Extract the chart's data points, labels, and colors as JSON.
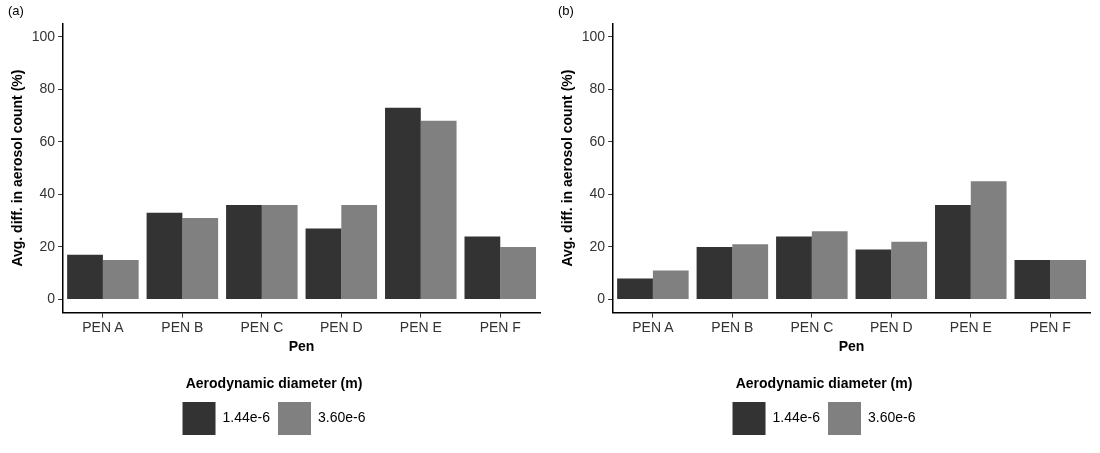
{
  "chart_data": [
    {
      "type": "bar",
      "title": "(a)",
      "xlabel": "Pen",
      "ylabel": "Avg. diff. in aerosol count (%)",
      "legend_title": "Aerodynamic diameter (m)",
      "legend": "bottom",
      "grid": false,
      "categories": [
        "PEN A",
        "PEN B",
        "PEN C",
        "PEN D",
        "PEN E",
        "PEN F"
      ],
      "series": [
        {
          "name": "1.44e-6",
          "color": "#333333",
          "values": [
            17,
            33,
            36,
            27,
            73,
            24
          ]
        },
        {
          "name": "3.60e-6",
          "color": "#808080",
          "values": [
            15,
            31,
            36,
            36,
            68,
            20
          ]
        }
      ],
      "ylim": [
        -5,
        105
      ],
      "yticks": [
        0,
        20,
        40,
        60,
        80,
        100
      ]
    },
    {
      "type": "bar",
      "title": "(b)",
      "xlabel": "Pen",
      "ylabel": "Avg. diff. in aerosol count (%)",
      "legend_title": "Aerodynamic diameter (m)",
      "legend": "bottom",
      "grid": false,
      "categories": [
        "PEN A",
        "PEN B",
        "PEN C",
        "PEN D",
        "PEN E",
        "PEN F"
      ],
      "series": [
        {
          "name": "1.44e-6",
          "color": "#333333",
          "values": [
            8,
            20,
            24,
            19,
            36,
            15
          ]
        },
        {
          "name": "3.60e-6",
          "color": "#808080",
          "values": [
            11,
            21,
            26,
            22,
            45,
            15
          ]
        }
      ],
      "ylim": [
        -5,
        105
      ],
      "yticks": [
        0,
        20,
        40,
        60,
        80,
        100
      ]
    }
  ]
}
